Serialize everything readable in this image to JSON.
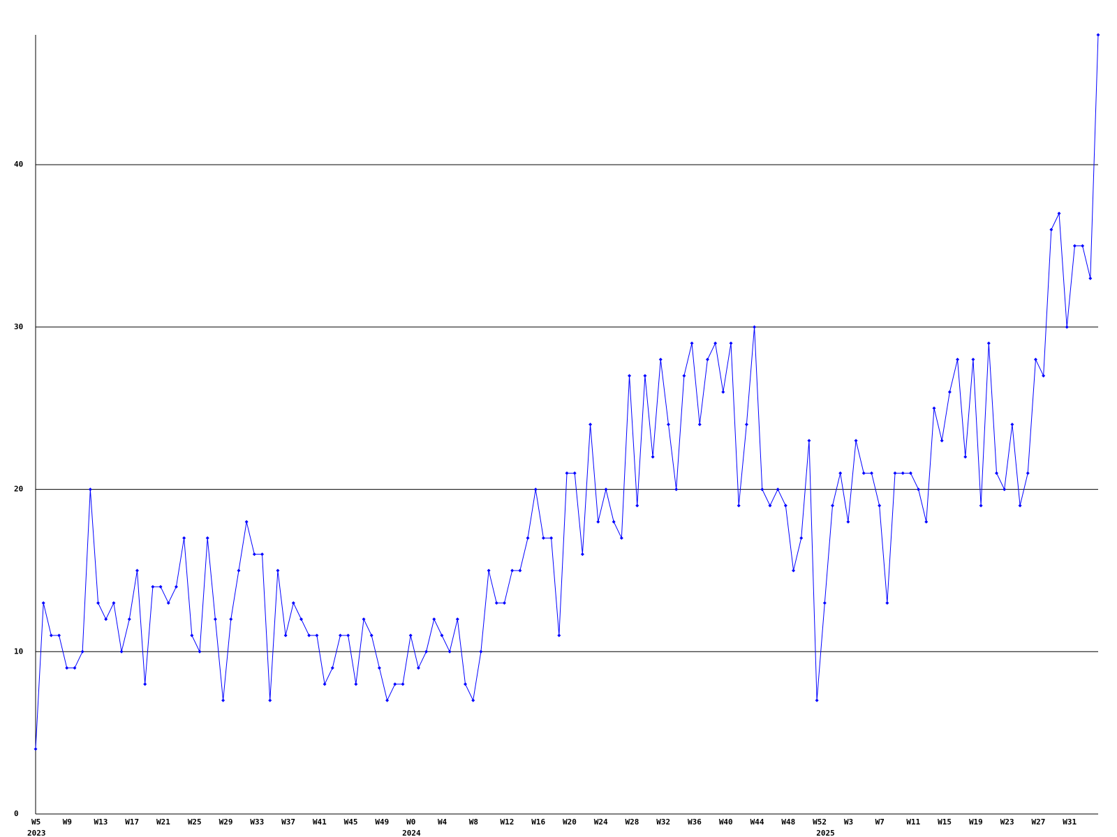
{
  "chart_data": {
    "type": "line",
    "color": "#0000ff",
    "grid": true,
    "ylim": [
      0,
      48
    ],
    "yticks": [
      0,
      10,
      20,
      30,
      40
    ],
    "categories": [
      "W5",
      null,
      null,
      null,
      "W9",
      null,
      null,
      null,
      "W13",
      null,
      null,
      null,
      "W17",
      null,
      null,
      null,
      "W21",
      null,
      null,
      null,
      "W25",
      null,
      null,
      null,
      "W29",
      null,
      null,
      null,
      "W33",
      null,
      null,
      null,
      "W37",
      null,
      null,
      null,
      "W41",
      null,
      null,
      null,
      "W45",
      null,
      null,
      null,
      "W49",
      null,
      null,
      null,
      "W0",
      null,
      null,
      null,
      "W4",
      null,
      null,
      null,
      "W8",
      null,
      null,
      null,
      "W12",
      null,
      null,
      null,
      "W16",
      null,
      null,
      null,
      "W20",
      null,
      null,
      null,
      "W24",
      null,
      null,
      null,
      "W28",
      null,
      null,
      null,
      "W32",
      null,
      null,
      null,
      "W36",
      null,
      null,
      null,
      "W40",
      null,
      null,
      null,
      "W44",
      null,
      null,
      null,
      "W48",
      null,
      null,
      null,
      "W52",
      null,
      null,
      null,
      "W3",
      null,
      null,
      null,
      "W7",
      null,
      null,
      null,
      "W11",
      null,
      null,
      null,
      "W15",
      null,
      null,
      null,
      "W19",
      null,
      null,
      null,
      "W23",
      null,
      null,
      null,
      "W27",
      null,
      null,
      null,
      "W31",
      null,
      null,
      null,
      null
    ],
    "year_labels": [
      "2023",
      null,
      null,
      null,
      null,
      null,
      null,
      null,
      null,
      null,
      null,
      null,
      null,
      null,
      null,
      null,
      null,
      null,
      null,
      null,
      null,
      null,
      null,
      null,
      null,
      null,
      null,
      null,
      null,
      null,
      null,
      null,
      null,
      null,
      null,
      null,
      null,
      null,
      null,
      null,
      null,
      null,
      null,
      null,
      null,
      null,
      null,
      null,
      "2024",
      null,
      null,
      null,
      null,
      null,
      null,
      null,
      null,
      null,
      null,
      null,
      null,
      null,
      null,
      null,
      null,
      null,
      null,
      null,
      null,
      null,
      null,
      null,
      null,
      null,
      null,
      null,
      null,
      null,
      null,
      null,
      null,
      null,
      null,
      null,
      null,
      null,
      null,
      null,
      null,
      null,
      null,
      null,
      null,
      null,
      null,
      null,
      null,
      null,
      null,
      null,
      null,
      "2025",
      null,
      null,
      null,
      null,
      null,
      null,
      null,
      null,
      null,
      null,
      null,
      null,
      null,
      null,
      null,
      null,
      null,
      null,
      null,
      null,
      null,
      null,
      null,
      null,
      null,
      null,
      null,
      null,
      null,
      null,
      null,
      null,
      null,
      null,
      null
    ],
    "values": [
      4,
      13,
      11,
      11,
      9,
      9,
      10,
      20,
      13,
      12,
      13,
      10,
      12,
      15,
      8,
      14,
      14,
      13,
      14,
      17,
      11,
      10,
      17,
      12,
      7,
      12,
      15,
      18,
      16,
      16,
      7,
      15,
      11,
      13,
      12,
      11,
      11,
      8,
      9,
      11,
      11,
      8,
      12,
      11,
      9,
      7,
      8,
      8,
      11,
      9,
      10,
      12,
      11,
      10,
      12,
      8,
      7,
      10,
      15,
      13,
      13,
      15,
      15,
      17,
      20,
      17,
      17,
      11,
      21,
      21,
      16,
      24,
      18,
      20,
      18,
      17,
      27,
      19,
      27,
      22,
      28,
      24,
      20,
      27,
      29,
      24,
      28,
      29,
      26,
      29,
      19,
      24,
      30,
      20,
      19,
      20,
      19,
      15,
      17,
      23,
      7,
      13,
      19,
      21,
      18,
      23,
      21,
      21,
      19,
      13,
      21,
      21,
      21,
      20,
      18,
      25,
      23,
      26,
      28,
      22,
      28,
      19,
      29,
      21,
      20,
      24,
      19,
      21,
      28,
      27,
      36,
      37,
      30,
      35,
      35,
      33,
      48
    ]
  }
}
